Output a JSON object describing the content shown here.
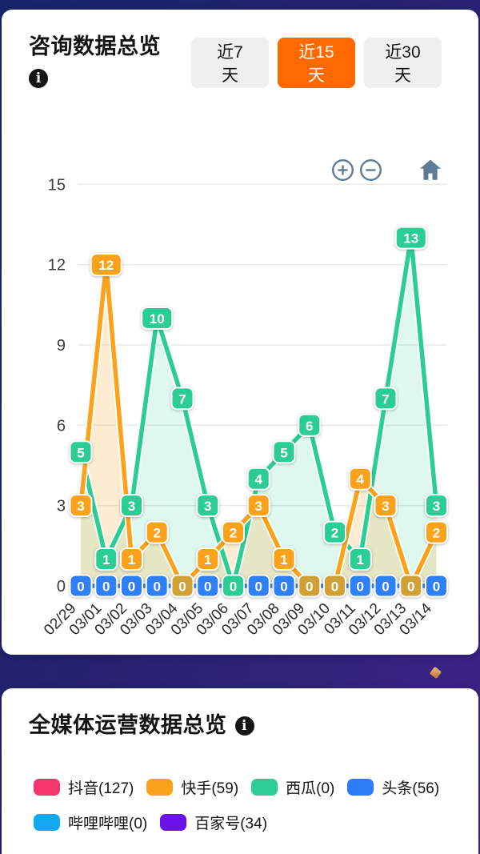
{
  "icons": {
    "info_glyph": "i"
  },
  "consult_card": {
    "title": "咨询数据总览",
    "tabs": [
      {
        "line1": "近7",
        "line2": "天",
        "active": false
      },
      {
        "line1": "近15",
        "line2": "天",
        "active": true
      },
      {
        "line1": "近30",
        "line2": "天",
        "active": false
      }
    ],
    "active_tab_color": "#FF6900",
    "toolbar": {
      "icons": [
        "zoom-in",
        "zoom-out",
        "home"
      ],
      "icon_color": "#5E7B96"
    }
  },
  "chart_data": {
    "type": "line",
    "title": "",
    "xlabel": "",
    "ylabel": "",
    "x": [
      "02/29",
      "03/01",
      "03/02",
      "03/03",
      "03/04",
      "03/05",
      "03/06",
      "03/07",
      "03/08",
      "03/09",
      "03/10",
      "03/11",
      "03/12",
      "03/13",
      "03/14"
    ],
    "series": [
      {
        "name": "green-series",
        "color": "#2BCD93",
        "fill": "rgba(43,205,147,0.15)",
        "values": [
          5,
          1,
          3,
          10,
          7,
          3,
          0,
          4,
          5,
          6,
          2,
          1,
          7,
          13,
          3
        ]
      },
      {
        "name": "orange-series",
        "color": "#FAA21B",
        "fill": "rgba(250,162,27,0.20)",
        "values": [
          3,
          12,
          1,
          2,
          0,
          1,
          2,
          3,
          1,
          0,
          0,
          4,
          3,
          0,
          2
        ]
      },
      {
        "name": "blue-series",
        "color": "#2F80F7",
        "fill": null,
        "values": [
          0,
          0,
          0,
          0,
          0,
          0,
          0,
          0,
          0,
          0,
          0,
          0,
          0,
          0,
          0
        ]
      }
    ],
    "ylim": [
      0,
      15
    ],
    "yticks": [
      0,
      3,
      6,
      9,
      12,
      15
    ],
    "grid": true,
    "legend_position": "none",
    "zero_label_colors": [
      "#2F80F7",
      "#2F80F7",
      "#2F80F7",
      "#2F80F7",
      "#D2A135",
      "#2F80F7",
      "#2BCD93",
      "#2F80F7",
      "#2F80F7",
      "#D2A135",
      "#D2A135",
      "#2F80F7",
      "#2F80F7",
      "#D2A135",
      "#2F80F7"
    ]
  },
  "media_card": {
    "title": "全媒体运营数据总览",
    "legend": [
      {
        "label": "抖音(127)",
        "color": "#F5356E"
      },
      {
        "label": "快手(59)",
        "color": "#FAA21B"
      },
      {
        "label": "西瓜(0)",
        "color": "#2BCD93"
      },
      {
        "label": "头条(56)",
        "color": "#2E7BF6"
      },
      {
        "label": "哔哩哔哩(0)",
        "color": "#12A9F2"
      },
      {
        "label": "百家号(34)",
        "color": "#6A11E8"
      }
    ]
  },
  "background": {
    "sparkle_color": "#D9954A"
  }
}
